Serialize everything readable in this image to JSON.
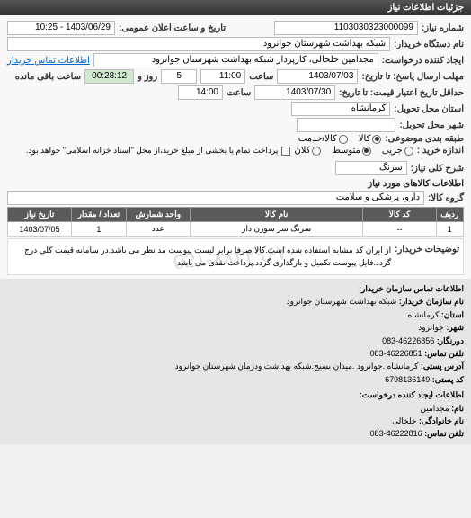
{
  "header": {
    "title": "جزئیات اطلاعات نیاز"
  },
  "form": {
    "number_label": "شماره نیاز:",
    "number_value": "1103030323000099",
    "announce_label": "تاریخ و ساعت اعلان عمومی:",
    "announce_value": "1403/06/29 - 10:25",
    "buyer_org_label": "نام دستگاه خریدار:",
    "buyer_org_value": "شبکه بهداشت شهرستان جوانرود",
    "creator_label": "ایجاد کننده درخواست:",
    "creator_value": "مجدامین خلخالی، کارپرداز شبکه بهداشت شهرستان جوانرود",
    "contact_link": "اطلاعات تماس خریدار",
    "deadline_label": "مهلت ارسال پاسخ: تا تاریخ:",
    "deadline_date": "1403/07/03",
    "time_label": "ساعت",
    "deadline_time": "11:00",
    "days_label": "روز و",
    "days_value": "5",
    "remain_label": "ساعت باقی مانده",
    "remain_value": "00:28:12",
    "valid_label": "حداقل تاریخ اعتبار قیمت: تا تاریخ:",
    "valid_date": "1403/07/30",
    "valid_time": "14:00",
    "province_label": "استان محل تحویل:",
    "province_value": "کرمانشاه",
    "city_label": "شهر محل تحویل:",
    "topic_class_label": "طبقه بندی موضوعی:",
    "topic_options": {
      "goods": "کالا",
      "service": "کالا/خدمت"
    },
    "topic_selected": "goods",
    "volume_label": "اندازه خرید :",
    "volume_options": {
      "small": "جزیی",
      "medium": "متوسط",
      "large": "کلان"
    },
    "volume_selected": "medium",
    "note_text": "پرداخت تمام یا بخشی از مبلغ خرید،از محل \"اسناد خزانه اسلامی\" خواهد بود.",
    "desc_label": "شرح کلی نیاز:",
    "desc_value": "سرنگ",
    "section_items": "اطلاعات کالاهای مورد نیاز",
    "group_label": "گروه کالا:",
    "group_value": "دارو، پزشکی و سلامت",
    "explain_label": "توضیحات خریدار:",
    "explain_value": "از ایران کد مشابه استفاده شده است.کالا صرفا برابر لیست پیوست مد نظر می باشد.در سامانه قیمت کلی درج گردد.فایل پیوست تکمیل و بارگذاری گردد.پرداخت نقدی می باشد"
  },
  "table": {
    "columns": [
      "ردیف",
      "کد کالا",
      "نام کالا",
      "واحد شمارش",
      "تعداد / مقدار",
      "تاریخ نیاز"
    ],
    "col_widths": [
      "6%",
      "16%",
      "38%",
      "14%",
      "12%",
      "14%"
    ],
    "rows": [
      [
        "1",
        "--",
        "سرنگ سر سوزن دار",
        "عدد",
        "1",
        "1403/07/05"
      ]
    ]
  },
  "watermark": "02۱-۸۸۴۳۹۶۷۰",
  "footer": {
    "title": "اطلاعات تماس سازمان خریدار:",
    "org_label": "نام سازمان خریدار:",
    "org_value": "شبکه بهداشت شهرستان جوانرود",
    "province_label": "استان:",
    "province_value": "کرمانشاه",
    "city_label": "شهر:",
    "city_value": "جوانرود",
    "fax_label": "دورنگار:",
    "fax_value": "46226856-083",
    "tel_label": "تلفن تماس:",
    "tel_value": "46226851-083",
    "addr_label": "آدرس پستی:",
    "addr_value": "کرمانشاه .جوانرود .میدان بسیج.شبکه بهداشت ودرمان شهرستان جوانرود",
    "postal_label": "کد پستی:",
    "postal_value": "6798136149",
    "creator_title": "اطلاعات ایجاد کننده درخواست:",
    "name_label": "نام:",
    "name_value": "مجدامین",
    "lname_label": "نام خانوادگی:",
    "lname_value": "خلخالی",
    "ctel_label": "تلفن تماس:",
    "ctel_value": "46222816-083"
  },
  "colors": {
    "header_bg": "#444",
    "link": "#0066cc",
    "remain_bg": "#cfe8cf"
  }
}
